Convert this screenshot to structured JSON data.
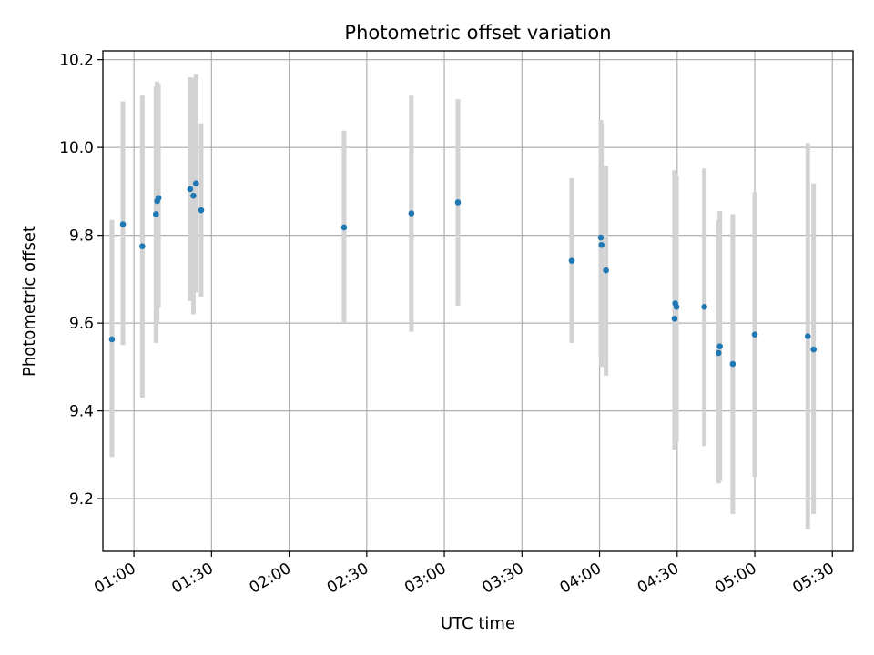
{
  "chart_data": {
    "type": "scatter",
    "title": "Photometric offset variation",
    "xlabel": "UTC time",
    "ylabel": "Photometric offset",
    "x_unit": "time of day (UTC)",
    "xlim": [
      "00:48",
      "05:38"
    ],
    "ylim": [
      9.08,
      10.22
    ],
    "x_ticks": [
      "01:00",
      "01:30",
      "02:00",
      "02:30",
      "03:00",
      "03:30",
      "04:00",
      "04:30",
      "05:00",
      "05:30"
    ],
    "y_ticks": [
      "9.2",
      "9.4",
      "9.6",
      "9.8",
      "10.0",
      "10.2"
    ],
    "grid": true,
    "colors": {
      "point": "#1f77b4",
      "errorbar": "#d3d3d3",
      "grid": "#b0b0b0"
    },
    "points": [
      {
        "x": "00:51:30",
        "y": 9.563,
        "lo": 9.295,
        "hi": 9.835
      },
      {
        "x": "00:55:45",
        "y": 9.825,
        "lo": 9.55,
        "hi": 10.105
      },
      {
        "x": "01:03:15",
        "y": 9.775,
        "lo": 9.43,
        "hi": 10.12
      },
      {
        "x": "01:08:30",
        "y": 9.848,
        "lo": 9.555,
        "hi": 10.14
      },
      {
        "x": "01:09:00",
        "y": 9.878,
        "lo": 9.6,
        "hi": 10.15
      },
      {
        "x": "01:09:30",
        "y": 9.885,
        "lo": 9.635,
        "hi": 10.145
      },
      {
        "x": "01:21:45",
        "y": 9.905,
        "lo": 9.65,
        "hi": 10.16
      },
      {
        "x": "01:23:00",
        "y": 9.89,
        "lo": 9.62,
        "hi": 10.158
      },
      {
        "x": "01:24:00",
        "y": 9.918,
        "lo": 9.67,
        "hi": 10.168
      },
      {
        "x": "01:26:00",
        "y": 9.857,
        "lo": 9.66,
        "hi": 10.055
      },
      {
        "x": "02:21:15",
        "y": 9.818,
        "lo": 9.6,
        "hi": 10.038
      },
      {
        "x": "02:47:15",
        "y": 9.85,
        "lo": 9.58,
        "hi": 10.12
      },
      {
        "x": "03:05:15",
        "y": 9.875,
        "lo": 9.64,
        "hi": 10.11
      },
      {
        "x": "03:49:15",
        "y": 9.742,
        "lo": 9.555,
        "hi": 9.93
      },
      {
        "x": "04:00:30",
        "y": 9.795,
        "lo": 9.52,
        "hi": 10.063
      },
      {
        "x": "04:00:45",
        "y": 9.778,
        "lo": 9.5,
        "hi": 10.055
      },
      {
        "x": "04:02:30",
        "y": 9.72,
        "lo": 9.48,
        "hi": 9.958
      },
      {
        "x": "04:29:00",
        "y": 9.61,
        "lo": 9.31,
        "hi": 9.948
      },
      {
        "x": "04:29:15",
        "y": 9.645,
        "lo": 9.335,
        "hi": 9.94
      },
      {
        "x": "04:29:45",
        "y": 9.637,
        "lo": 9.33,
        "hi": 9.935
      },
      {
        "x": "04:40:30",
        "y": 9.637,
        "lo": 9.32,
        "hi": 9.952
      },
      {
        "x": "04:46:00",
        "y": 9.532,
        "lo": 9.235,
        "hi": 9.835
      },
      {
        "x": "04:46:30",
        "y": 9.547,
        "lo": 9.24,
        "hi": 9.855
      },
      {
        "x": "04:51:30",
        "y": 9.507,
        "lo": 9.165,
        "hi": 9.848
      },
      {
        "x": "05:00:00",
        "y": 9.574,
        "lo": 9.25,
        "hi": 9.898
      },
      {
        "x": "05:20:30",
        "y": 9.57,
        "lo": 9.13,
        "hi": 10.01
      },
      {
        "x": "05:22:45",
        "y": 9.54,
        "lo": 9.165,
        "hi": 9.918
      }
    ]
  }
}
